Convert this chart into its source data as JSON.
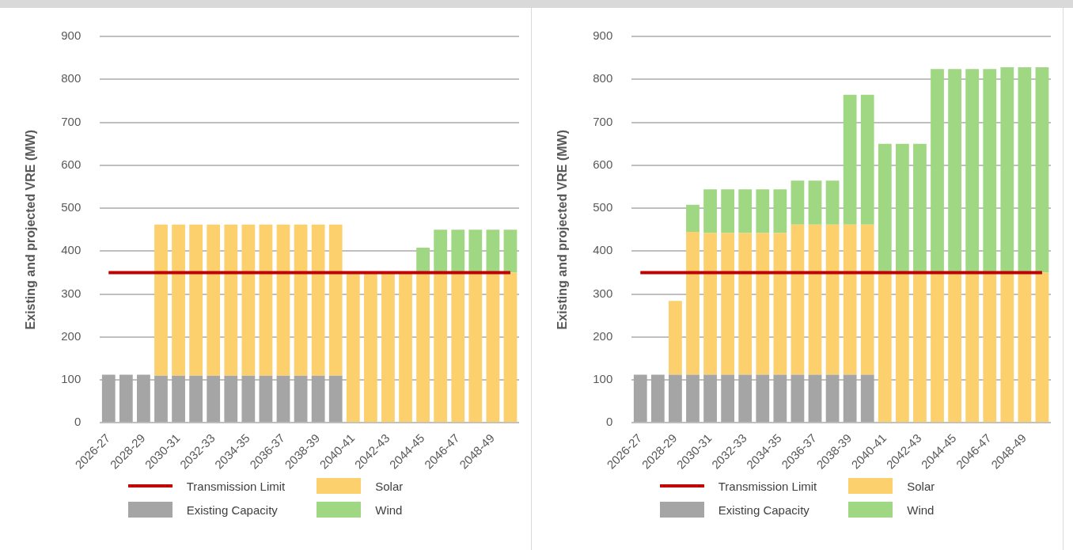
{
  "chart_data": [
    {
      "type": "bar",
      "ylabel": "Existing and projected VRE (MW)",
      "stacked": true,
      "grid": "y",
      "legend": "bottom",
      "categories": [
        "2026-27",
        null,
        "2028-29",
        null,
        "2030-31",
        null,
        "2032-33",
        null,
        "2034-35",
        null,
        "2036-37",
        null,
        "2038-39",
        null,
        "2040-41",
        null,
        "2042-43",
        null,
        "2044-45",
        null,
        "2046-47",
        null,
        "2048-49",
        null
      ],
      "ylim": [
        0,
        900
      ],
      "yticks": [
        0,
        100,
        200,
        300,
        400,
        500,
        600,
        700,
        800,
        900
      ],
      "series": [
        {
          "name": "Transmission Limit",
          "type": "line",
          "color": "#c00000",
          "values": [
            350,
            350,
            350,
            350,
            350,
            350,
            350,
            350,
            350,
            350,
            350,
            350,
            350,
            350,
            350,
            350,
            350,
            350,
            350,
            350,
            350,
            350,
            350,
            350
          ]
        },
        {
          "name": "Existing Capacity",
          "color": "#a5a5a5",
          "values": [
            112,
            112,
            112,
            110,
            110,
            110,
            110,
            110,
            110,
            110,
            110,
            110,
            110,
            110,
            null,
            null,
            null,
            null,
            null,
            null,
            null,
            null,
            null,
            null
          ]
        },
        {
          "name": "Solar",
          "color": "#fdd06e",
          "values": [
            null,
            null,
            null,
            352,
            352,
            352,
            352,
            352,
            352,
            352,
            352,
            352,
            352,
            352,
            350,
            350,
            350,
            350,
            350,
            350,
            350,
            350,
            350,
            350
          ]
        },
        {
          "name": "Wind",
          "color": "#a0d783",
          "values": [
            null,
            null,
            null,
            null,
            null,
            null,
            null,
            null,
            null,
            null,
            null,
            null,
            null,
            null,
            null,
            null,
            null,
            null,
            58,
            100,
            100,
            100,
            100,
            100
          ]
        }
      ]
    },
    {
      "type": "bar",
      "ylabel": "Existing and projected VRE (MW)",
      "stacked": true,
      "grid": "y",
      "legend": "bottom",
      "categories": [
        "2026-27",
        null,
        "2028-29",
        null,
        "2030-31",
        null,
        "2032-33",
        null,
        "2034-35",
        null,
        "2036-37",
        null,
        "2038-39",
        null,
        "2040-41",
        null,
        "2042-43",
        null,
        "2044-45",
        null,
        "2046-47",
        null,
        "2048-49",
        null
      ],
      "ylim": [
        0,
        900
      ],
      "yticks": [
        0,
        100,
        200,
        300,
        400,
        500,
        600,
        700,
        800,
        900
      ],
      "series": [
        {
          "name": "Transmission Limit",
          "type": "line",
          "color": "#c00000",
          "values": [
            350,
            350,
            350,
            350,
            350,
            350,
            350,
            350,
            350,
            350,
            350,
            350,
            350,
            350,
            350,
            350,
            350,
            350,
            350,
            350,
            350,
            350,
            350,
            350
          ]
        },
        {
          "name": "Existing Capacity",
          "color": "#a5a5a5",
          "values": [
            112,
            112,
            112,
            112,
            112,
            112,
            112,
            112,
            112,
            112,
            112,
            112,
            112,
            112,
            null,
            null,
            null,
            null,
            null,
            null,
            null,
            null,
            null,
            null
          ]
        },
        {
          "name": "Solar",
          "color": "#fdd06e",
          "values": [
            null,
            null,
            172,
            333,
            330,
            330,
            330,
            330,
            330,
            350,
            350,
            350,
            350,
            350,
            350,
            350,
            350,
            350,
            350,
            350,
            350,
            350,
            350,
            350
          ]
        },
        {
          "name": "Wind",
          "color": "#a0d783",
          "values": [
            null,
            null,
            null,
            63,
            102,
            102,
            102,
            102,
            102,
            102,
            102,
            102,
            302,
            302,
            300,
            300,
            300,
            474,
            474,
            474,
            474,
            478,
            478,
            478
          ]
        }
      ]
    }
  ]
}
